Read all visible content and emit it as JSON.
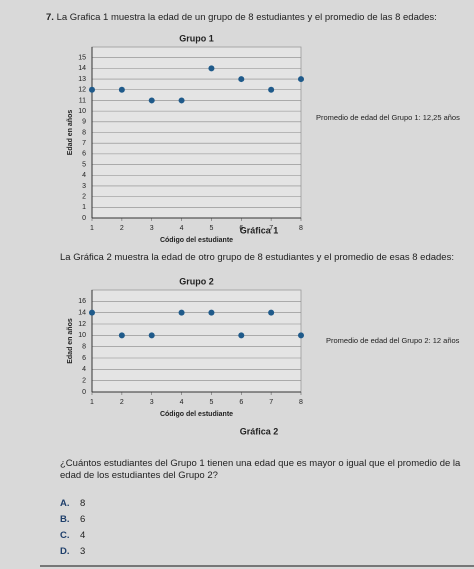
{
  "question_number": "7.",
  "intro_1": "La Grafica 1 muestra la edad de un grupo de 8 estudiantes y el promedio de las 8 edades:",
  "intro_2": "La Gráfica 2 muestra la edad de otro grupo de 8 estudiantes y el promedio de esas 8 edades:",
  "chart_data": [
    {
      "type": "scatter",
      "title": "Grupo 1",
      "xlabel": "Código del estudiante",
      "ylabel": "Edad en años",
      "x": [
        1,
        2,
        3,
        4,
        5,
        6,
        7,
        8
      ],
      "values": [
        12,
        12,
        11,
        11,
        14,
        13,
        12,
        13
      ],
      "color": "#1f5a8a",
      "xlim": [
        1,
        8
      ],
      "ylim": [
        0,
        16
      ],
      "xticks": [
        1,
        2,
        3,
        4,
        5,
        6,
        7,
        8
      ],
      "yticks": [
        0,
        1,
        2,
        3,
        4,
        5,
        6,
        7,
        8,
        9,
        10,
        11,
        12,
        13,
        14,
        15
      ],
      "grid": true,
      "annotation": "Promedio de edad del Grupo 1: 12,25 años",
      "caption": "Gráfica 1"
    },
    {
      "type": "scatter",
      "title": "Grupo 2",
      "xlabel": "Código del estudiante",
      "ylabel": "Edad en años",
      "x": [
        1,
        2,
        3,
        4,
        5,
        6,
        7,
        8
      ],
      "values": [
        14,
        10,
        10,
        14,
        14,
        10,
        14,
        10
      ],
      "color": "#1f5a8a",
      "xlim": [
        1,
        8
      ],
      "ylim": [
        0,
        18
      ],
      "xticks": [
        1,
        2,
        3,
        4,
        5,
        6,
        7,
        8
      ],
      "yticks": [
        0,
        2,
        4,
        6,
        8,
        10,
        12,
        14,
        16
      ],
      "grid": true,
      "annotation": "Promedio de edad del Grupo 2: 12 años",
      "caption": "Gráfica 2"
    }
  ],
  "question": "¿Cuántos estudiantes del Grupo 1 tienen una edad que es mayor o igual que el promedio de la edad de los estudiantes del Grupo 2?",
  "options": [
    {
      "letter": "A.",
      "text": "8"
    },
    {
      "letter": "B.",
      "text": "6"
    },
    {
      "letter": "C.",
      "text": "4"
    },
    {
      "letter": "D.",
      "text": "3"
    }
  ]
}
